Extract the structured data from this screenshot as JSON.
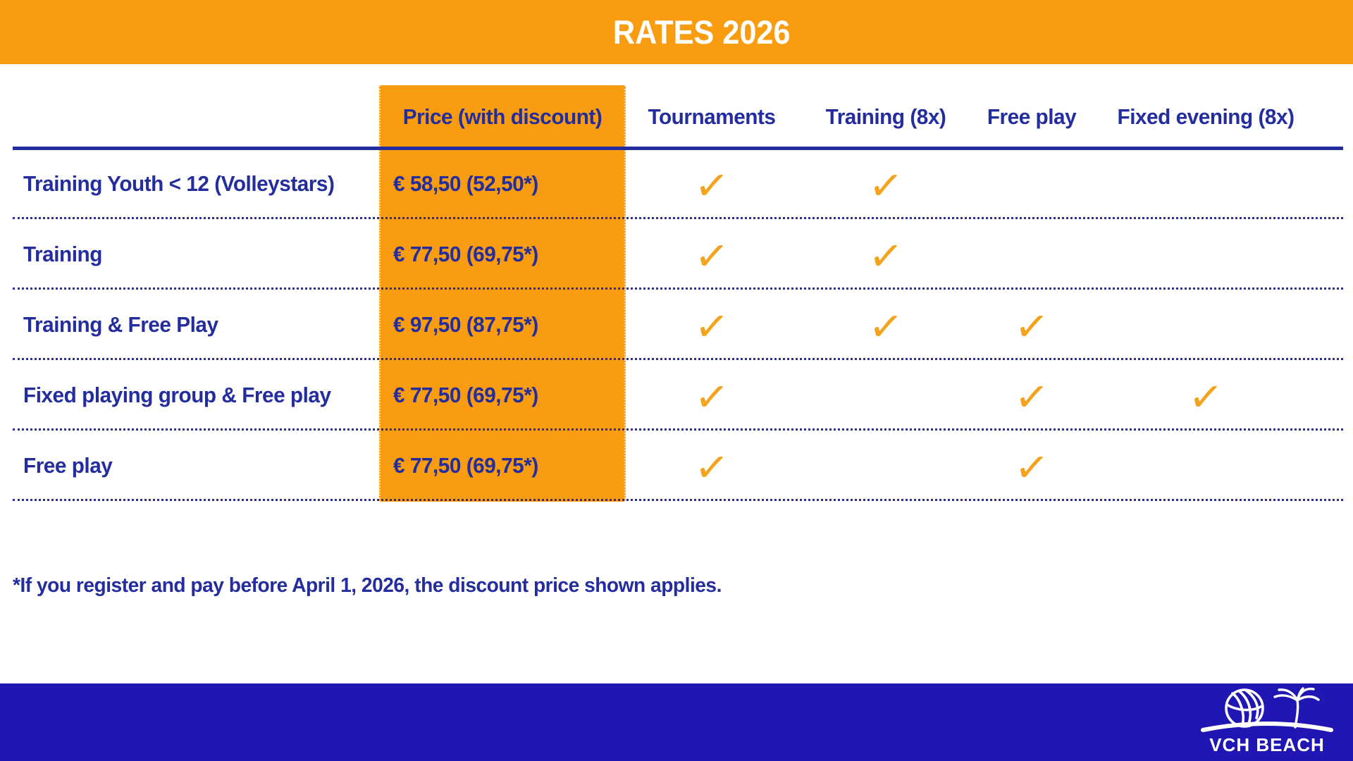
{
  "title": "RATES 2026",
  "table": {
    "columns": [
      "Price (with discount)",
      "Tournaments",
      "Training (8x)",
      "Free play",
      "Fixed evening (8x)"
    ],
    "rows": [
      {
        "label": "Training Youth < 12 (Volleystars)",
        "price": "€ 58,50 (52,50*)",
        "checks": [
          true,
          true,
          false,
          false
        ]
      },
      {
        "label": "Training",
        "price": "€ 77,50 (69,75*)",
        "checks": [
          true,
          true,
          false,
          false
        ]
      },
      {
        "label": "Training & Free Play",
        "price": "€ 97,50 (87,75*)",
        "checks": [
          true,
          true,
          true,
          false
        ]
      },
      {
        "label": "Fixed playing group & Free play",
        "price": "€ 77,50 (69,75*)",
        "checks": [
          true,
          false,
          true,
          true
        ]
      },
      {
        "label": "Free play",
        "price": "€ 77,50 (69,75*)",
        "checks": [
          true,
          false,
          true,
          false
        ]
      }
    ]
  },
  "footnote": "*If you register and pay before April 1, 2026, the discount price shown applies.",
  "footer": {
    "logo_text": "VCH BEACH"
  },
  "icons": {
    "check": "✓",
    "logo_ball": "volleyball-icon",
    "logo_palm": "palm-tree-icon"
  },
  "colors": {
    "banner_orange": "#F99C0F",
    "check_orange": "#F5A21D",
    "text_navy": "#242D9E",
    "footer_blue": "#1F16B4"
  }
}
